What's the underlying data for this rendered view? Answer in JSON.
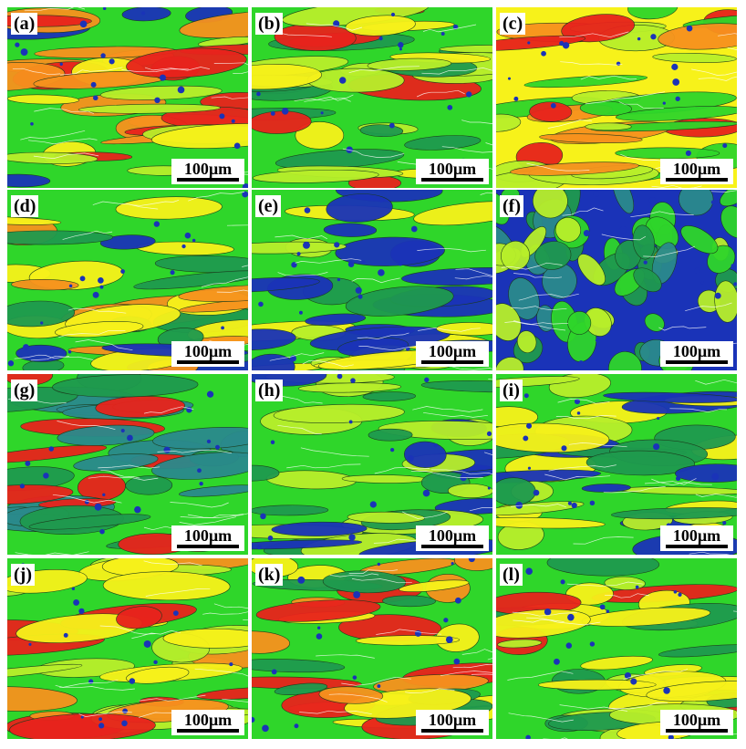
{
  "scale_label": "100µm",
  "palette": {
    "red": "#e8231c",
    "orange": "#f7921e",
    "yellow": "#f7f21a",
    "lime": "#b8ef2a",
    "green": "#2fd62a",
    "darkgreen": "#1f9a4e",
    "teal": "#2a8a8c",
    "blue": "#1a33b8",
    "white": "#ffffff"
  },
  "panels": [
    {
      "label": "(a)",
      "base": "green",
      "accents": [
        "yellow",
        "lime",
        "red",
        "orange",
        "blue"
      ]
    },
    {
      "label": "(b)",
      "base": "green",
      "accents": [
        "lime",
        "yellow",
        "red",
        "darkgreen"
      ]
    },
    {
      "label": "(c)",
      "base": "yellow",
      "accents": [
        "orange",
        "lime",
        "green",
        "red"
      ]
    },
    {
      "label": "(d)",
      "base": "green",
      "accents": [
        "yellow",
        "orange",
        "blue",
        "darkgreen"
      ]
    },
    {
      "label": "(e)",
      "base": "green",
      "accents": [
        "lime",
        "yellow",
        "blue",
        "darkgreen"
      ]
    },
    {
      "label": "(f)",
      "base": "blue",
      "accents": [
        "teal",
        "darkgreen",
        "green",
        "lime"
      ]
    },
    {
      "label": "(g)",
      "base": "green",
      "accents": [
        "darkgreen",
        "red",
        "teal"
      ]
    },
    {
      "label": "(h)",
      "base": "green",
      "accents": [
        "darkgreen",
        "lime",
        "blue"
      ]
    },
    {
      "label": "(i)",
      "base": "green",
      "accents": [
        "yellow",
        "lime",
        "darkgreen",
        "blue"
      ]
    },
    {
      "label": "(j)",
      "base": "green",
      "accents": [
        "yellow",
        "orange",
        "red",
        "lime"
      ]
    },
    {
      "label": "(k)",
      "base": "green",
      "accents": [
        "orange",
        "red",
        "yellow",
        "darkgreen"
      ]
    },
    {
      "label": "(l)",
      "base": "green",
      "accents": [
        "yellow",
        "red",
        "darkgreen",
        "lime"
      ]
    }
  ]
}
